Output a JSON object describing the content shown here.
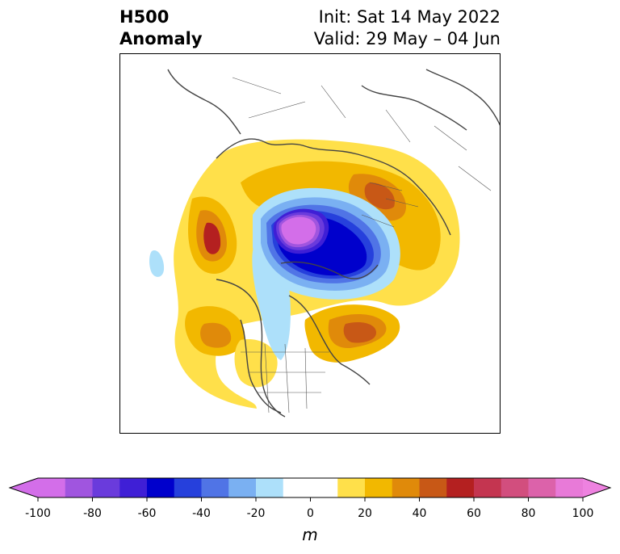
{
  "title": {
    "left_line1": "H500",
    "left_line2": "Anomaly",
    "right_line1": "Init: Sat 14 May 2022",
    "right_line2": "Valid: 29 May – 04 Jun"
  },
  "map": {
    "projection": "north-polar-stereographic",
    "field": "500 hPa geopotential height anomaly"
  },
  "colorbar": {
    "unit": "m",
    "ticks": [
      "-100",
      "-80",
      "-60",
      "-40",
      "-20",
      "0",
      "20",
      "40",
      "60",
      "80",
      "100"
    ],
    "levels": [
      -100,
      -90,
      -80,
      -70,
      -60,
      -50,
      -40,
      -30,
      -20,
      -10,
      10,
      20,
      30,
      40,
      50,
      60,
      70,
      80,
      90,
      100
    ],
    "colors": [
      "#d36ee9",
      "#a055df",
      "#6a3bdc",
      "#3f1fd6",
      "#0000cc",
      "#2640dc",
      "#5074e6",
      "#7ab0f2",
      "#ade0fa",
      "#ffffff",
      "#ffe04a",
      "#f2b800",
      "#e08a0a",
      "#c85816",
      "#b42020",
      "#c43550",
      "#d24e7e",
      "#dc62aa",
      "#e87ad8"
    ],
    "under_color": "#d36ee9",
    "over_color": "#ee82e0"
  }
}
